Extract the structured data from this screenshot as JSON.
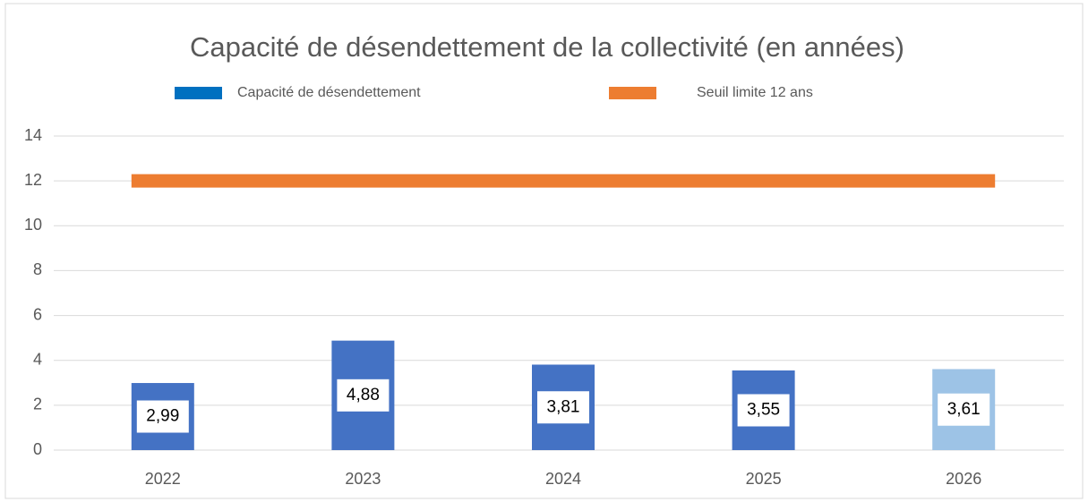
{
  "chart_data": {
    "type": "bar",
    "title": "Capacité de désendettement de la collectivité (en années)",
    "categories": [
      "2022",
      "2023",
      "2024",
      "2025",
      "2026"
    ],
    "series": [
      {
        "name": "Capacité de désendettement",
        "type": "bar",
        "color": "#0070c0",
        "bar_colors": [
          "#4472c4",
          "#4472c4",
          "#4472c4",
          "#4472c4",
          "#9dc3e6"
        ],
        "values": [
          2.99,
          4.88,
          3.81,
          3.55,
          3.61
        ],
        "value_labels": [
          "2,99",
          "4,88",
          "3,81",
          "3,55",
          "3,61"
        ]
      },
      {
        "name": "Seuil limite 12 ans",
        "type": "line",
        "color": "#ed7d31",
        "values": [
          12,
          12,
          12,
          12,
          12
        ]
      }
    ],
    "ylim": [
      0,
      14
    ],
    "yticks": [
      0,
      2,
      4,
      6,
      8,
      10,
      12,
      14
    ],
    "grid": true,
    "legend": "top"
  }
}
